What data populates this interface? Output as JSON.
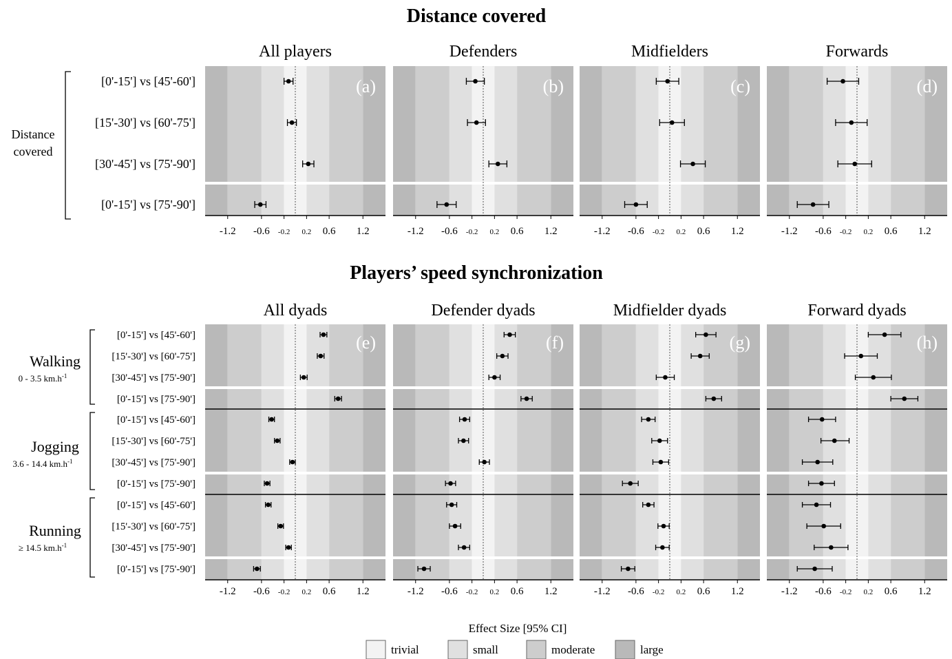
{
  "chart_data": [
    {
      "type": "forest",
      "title": "Distance covered",
      "group_label": [
        "Distance",
        "covered"
      ],
      "rows": [
        "[0'-15'] vs [45'-60']",
        "[15'-30'] vs [60'-75']",
        "[30'-45'] vs [75'-90']",
        "[0'-15'] vs [75'-90']"
      ],
      "xticks": [
        "-1.2",
        "-0.6",
        "-0.2",
        "0.2",
        "0.6",
        "1.2"
      ],
      "xlim": [
        -1.6,
        1.6
      ],
      "panels": [
        {
          "label": "(a)",
          "title": "All players",
          "series": [
            {
              "es": -0.12,
              "lo": -0.2,
              "hi": -0.04
            },
            {
              "es": -0.06,
              "lo": -0.14,
              "hi": 0.02
            },
            {
              "es": 0.23,
              "lo": 0.13,
              "hi": 0.33
            },
            {
              "es": -0.62,
              "lo": -0.72,
              "hi": -0.52
            }
          ]
        },
        {
          "label": "(b)",
          "title": "Defenders",
          "series": [
            {
              "es": -0.14,
              "lo": -0.3,
              "hi": 0.02
            },
            {
              "es": -0.12,
              "lo": -0.28,
              "hi": 0.04
            },
            {
              "es": 0.26,
              "lo": 0.1,
              "hi": 0.42
            },
            {
              "es": -0.65,
              "lo": -0.82,
              "hi": -0.48
            }
          ]
        },
        {
          "label": "(c)",
          "title": "Midfielders",
          "series": [
            {
              "es": -0.04,
              "lo": -0.24,
              "hi": 0.16
            },
            {
              "es": 0.04,
              "lo": -0.18,
              "hi": 0.26
            },
            {
              "es": 0.41,
              "lo": 0.19,
              "hi": 0.63
            },
            {
              "es": -0.6,
              "lo": -0.8,
              "hi": -0.4
            }
          ]
        },
        {
          "label": "(d)",
          "title": "Forwards",
          "series": [
            {
              "es": -0.25,
              "lo": -0.53,
              "hi": 0.03
            },
            {
              "es": -0.1,
              "lo": -0.38,
              "hi": 0.18
            },
            {
              "es": -0.04,
              "lo": -0.34,
              "hi": 0.26
            },
            {
              "es": -0.78,
              "lo": -1.06,
              "hi": -0.5
            }
          ]
        }
      ]
    },
    {
      "type": "forest",
      "title": "Players’ speed synchronization",
      "groups": [
        {
          "name": "Walking",
          "sub": "0 - 3.5 km.h",
          "sup": "-1"
        },
        {
          "name": "Jogging",
          "sub": "3.6 - 14.4 km.h",
          "sup": "-1"
        },
        {
          "name": "Running",
          "sub": "≥ 14.5 km.h",
          "sup": "-1"
        }
      ],
      "rows": [
        "[0'-15'] vs [45'-60']",
        "[15'-30'] vs [60'-75']",
        "[30'-45'] vs [75'-90']",
        "[0'-15'] vs [75'-90']"
      ],
      "xticks": [
        "-1.2",
        "-0.6",
        "-0.2",
        "0.2",
        "0.6",
        "1.2"
      ],
      "xlim": [
        -1.6,
        1.6
      ],
      "panels": [
        {
          "label": "(e)",
          "title": "All dyads",
          "series": [
            [
              {
                "es": 0.5,
                "lo": 0.44,
                "hi": 0.56
              },
              {
                "es": 0.45,
                "lo": 0.39,
                "hi": 0.51
              },
              {
                "es": 0.15,
                "lo": 0.09,
                "hi": 0.21
              },
              {
                "es": 0.76,
                "lo": 0.7,
                "hi": 0.82
              }
            ],
            [
              {
                "es": -0.42,
                "lo": -0.47,
                "hi": -0.37
              },
              {
                "es": -0.32,
                "lo": -0.37,
                "hi": -0.27
              },
              {
                "es": -0.05,
                "lo": -0.1,
                "hi": 0.0
              },
              {
                "es": -0.5,
                "lo": -0.55,
                "hi": -0.45
              }
            ],
            [
              {
                "es": -0.48,
                "lo": -0.53,
                "hi": -0.43
              },
              {
                "es": -0.26,
                "lo": -0.31,
                "hi": -0.21
              },
              {
                "es": -0.12,
                "lo": -0.17,
                "hi": -0.07
              },
              {
                "es": -0.68,
                "lo": -0.74,
                "hi": -0.62
              }
            ]
          ]
        },
        {
          "label": "(f)",
          "title": "Defender dyads",
          "series": [
            [
              {
                "es": 0.47,
                "lo": 0.37,
                "hi": 0.57
              },
              {
                "es": 0.34,
                "lo": 0.24,
                "hi": 0.44
              },
              {
                "es": 0.2,
                "lo": 0.1,
                "hi": 0.3
              },
              {
                "es": 0.77,
                "lo": 0.67,
                "hi": 0.87
              }
            ],
            [
              {
                "es": -0.33,
                "lo": -0.42,
                "hi": -0.24
              },
              {
                "es": -0.35,
                "lo": -0.44,
                "hi": -0.26
              },
              {
                "es": 0.02,
                "lo": -0.07,
                "hi": 0.11
              },
              {
                "es": -0.58,
                "lo": -0.67,
                "hi": -0.49
              }
            ],
            [
              {
                "es": -0.56,
                "lo": -0.65,
                "hi": -0.47
              },
              {
                "es": -0.5,
                "lo": -0.6,
                "hi": -0.4
              },
              {
                "es": -0.34,
                "lo": -0.44,
                "hi": -0.24
              },
              {
                "es": -1.05,
                "lo": -1.16,
                "hi": -0.94
              }
            ]
          ]
        },
        {
          "label": "(g)",
          "title": "Midfielder dyads",
          "series": [
            [
              {
                "es": 0.64,
                "lo": 0.46,
                "hi": 0.82
              },
              {
                "es": 0.54,
                "lo": 0.38,
                "hi": 0.7
              },
              {
                "es": -0.08,
                "lo": -0.24,
                "hi": 0.08
              },
              {
                "es": 0.78,
                "lo": 0.64,
                "hi": 0.92
              }
            ],
            [
              {
                "es": -0.38,
                "lo": -0.5,
                "hi": -0.26
              },
              {
                "es": -0.18,
                "lo": -0.32,
                "hi": -0.04
              },
              {
                "es": -0.16,
                "lo": -0.3,
                "hi": -0.02
              },
              {
                "es": -0.7,
                "lo": -0.84,
                "hi": -0.56
              }
            ],
            [
              {
                "es": -0.38,
                "lo": -0.48,
                "hi": -0.28
              },
              {
                "es": -0.11,
                "lo": -0.21,
                "hi": -0.01
              },
              {
                "es": -0.13,
                "lo": -0.25,
                "hi": -0.01
              },
              {
                "es": -0.74,
                "lo": -0.86,
                "hi": -0.62
              }
            ]
          ]
        },
        {
          "label": "(h)",
          "title": "Forward dyads",
          "series": [
            [
              {
                "es": 0.49,
                "lo": 0.2,
                "hi": 0.78
              },
              {
                "es": 0.07,
                "lo": -0.22,
                "hi": 0.36
              },
              {
                "es": 0.29,
                "lo": -0.03,
                "hi": 0.61
              },
              {
                "es": 0.84,
                "lo": 0.6,
                "hi": 1.08
              }
            ],
            [
              {
                "es": -0.62,
                "lo": -0.86,
                "hi": -0.38
              },
              {
                "es": -0.4,
                "lo": -0.64,
                "hi": -0.14
              },
              {
                "es": -0.7,
                "lo": -0.97,
                "hi": -0.43
              },
              {
                "es": -0.63,
                "lo": -0.86,
                "hi": -0.4
              }
            ],
            [
              {
                "es": -0.72,
                "lo": -0.97,
                "hi": -0.47
              },
              {
                "es": -0.59,
                "lo": -0.89,
                "hi": -0.29
              },
              {
                "es": -0.46,
                "lo": -0.76,
                "hi": -0.16
              },
              {
                "es": -0.75,
                "lo": -1.06,
                "hi": -0.44
              }
            ]
          ]
        }
      ]
    }
  ],
  "legend": {
    "title": "Effect Size [95% CI]",
    "items": [
      {
        "label": "trivial",
        "color": "#f3f3f3"
      },
      {
        "label": "small",
        "color": "#e0e0e0"
      },
      {
        "label": "moderate",
        "color": "#cdcdcd"
      },
      {
        "label": "large",
        "color": "#b9b9b9"
      }
    ]
  }
}
